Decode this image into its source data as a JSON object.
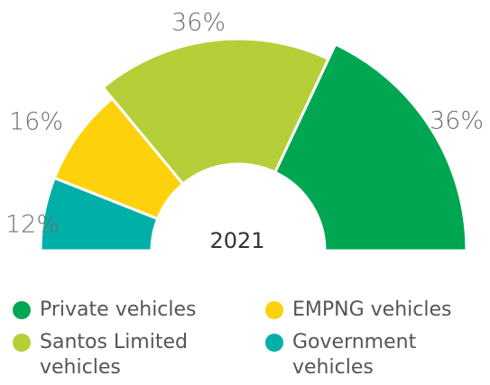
{
  "chart_data": {
    "type": "semi-donut",
    "center_label": "2021",
    "categories": [
      "Government vehicles",
      "EMPNG vehicles",
      "Santos Limited vehicles",
      "Private vehicles"
    ],
    "values": [
      12,
      16,
      36,
      36
    ],
    "value_labels": [
      "12%",
      "16%",
      "36%",
      "36%"
    ],
    "colors": [
      "#00b0a8",
      "#fdd20c",
      "#b5cf38",
      "#00a651"
    ]
  }
}
